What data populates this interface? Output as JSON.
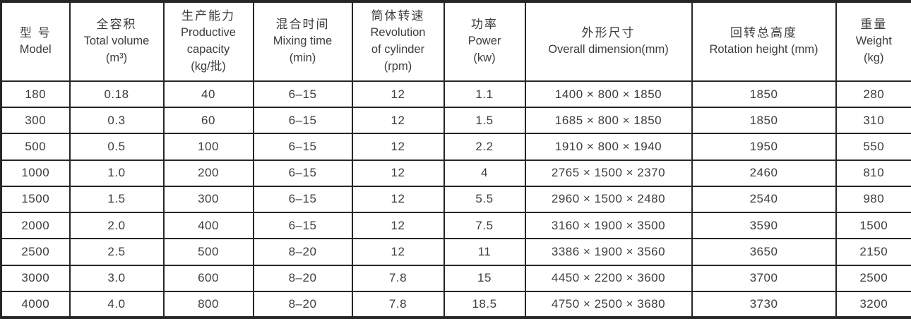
{
  "table": {
    "description": "Mixer machine specification table (bilingual Chinese/English headers)",
    "colors": {
      "text": "#3c3c3c",
      "border": "#262626",
      "background": "#ffffff"
    },
    "columns": [
      {
        "id": "model",
        "lines": [
          "型  号",
          "Model"
        ]
      },
      {
        "id": "total-volume",
        "lines": [
          "全容积",
          "Total volume",
          "(m³)"
        ]
      },
      {
        "id": "productive-capacity",
        "lines": [
          "生产能力",
          "Productive",
          "capacity",
          "(kg/批)"
        ]
      },
      {
        "id": "mixing-time",
        "lines": [
          "混合时间",
          "Mixing time",
          "(min)"
        ]
      },
      {
        "id": "revolution-of-cylinder",
        "lines": [
          "筒体转速",
          "Revolution",
          "of cylinder",
          "(rpm)"
        ]
      },
      {
        "id": "power",
        "lines": [
          "功率",
          "Power",
          "(kw)"
        ]
      },
      {
        "id": "overall-dimension",
        "lines": [
          "外形尺寸",
          "Overall dimension(mm)"
        ]
      },
      {
        "id": "rotation-height",
        "lines": [
          "回转总高度",
          "Rotation height (mm)"
        ]
      },
      {
        "id": "weight",
        "lines": [
          "重量",
          "Weight",
          "(kg)"
        ]
      }
    ],
    "rows": [
      [
        "180",
        "0.18",
        "40",
        "6–15",
        "12",
        "1.1",
        "1400 × 800 × 1850",
        "1850",
        "280"
      ],
      [
        "300",
        "0.3",
        "60",
        "6–15",
        "12",
        "1.5",
        "1685 × 800 × 1850",
        "1850",
        "310"
      ],
      [
        "500",
        "0.5",
        "100",
        "6–15",
        "12",
        "2.2",
        "1910 × 800 × 1940",
        "1950",
        "550"
      ],
      [
        "1000",
        "1.0",
        "200",
        "6–15",
        "12",
        "4",
        "2765 × 1500 × 2370",
        "2460",
        "810"
      ],
      [
        "1500",
        "1.5",
        "300",
        "6–15",
        "12",
        "5.5",
        "2960 × 1500 × 2480",
        "2540",
        "980"
      ],
      [
        "2000",
        "2.0",
        "400",
        "6–15",
        "12",
        "7.5",
        "3160 × 1900 × 3500",
        "3590",
        "1500"
      ],
      [
        "2500",
        "2.5",
        "500",
        "8–20",
        "12",
        "11",
        "3386 × 1900 × 3560",
        "3650",
        "2150"
      ],
      [
        "3000",
        "3.0",
        "600",
        "8–20",
        "7.8",
        "15",
        "4450 × 2200 × 3600",
        "3700",
        "2500"
      ],
      [
        "4000",
        "4.0",
        "800",
        "8–20",
        "7.8",
        "18.5",
        "4750 × 2500 × 3680",
        "3730",
        "3200"
      ]
    ]
  }
}
